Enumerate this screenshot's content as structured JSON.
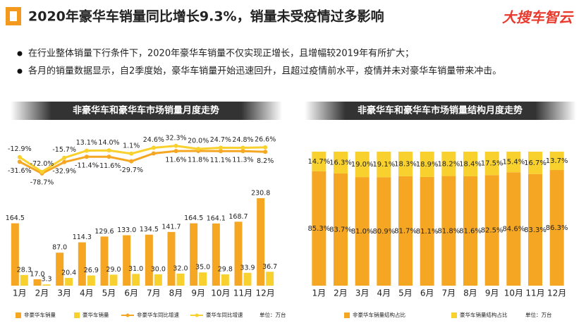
{
  "header": {
    "title": "2020年豪华车销量同比增长9.3%，销量未受疫情过多影响",
    "logo": "大搜车智云"
  },
  "bullets": [
    "在行业整体销量下行条件下，2020年豪华车销量不仅实现正增长，且增幅较2019年有所扩大；",
    "各月的销量数据显示，自2季度始，豪华车销量开始迅速回升，且超过疫情前水平，疫情并未对豪华车销量带来冲击。"
  ],
  "chart_data": [
    {
      "type": "combo",
      "title": "非豪华车和豪华车市场销量月度走势",
      "unit": "单位：万台",
      "categories": [
        "1月",
        "2月",
        "3月",
        "4月",
        "5月",
        "6月",
        "7月",
        "8月",
        "9月",
        "10月",
        "11月",
        "12月"
      ],
      "ylim": [
        0,
        400
      ],
      "y2lim": [
        -530,
        80
      ],
      "series": [
        {
          "name": "非豪华车销量",
          "type": "bar",
          "color": "#f5a623",
          "values": [
            164.5,
            17.0,
            87.0,
            114.3,
            129.6,
            133.0,
            134.5,
            141.7,
            164.5,
            164.1,
            168.7,
            230.8
          ],
          "value_labels": [
            "164.5",
            "17.0",
            "87.0",
            "114.3",
            "129.6",
            "133.0",
            "134.5",
            "141.7",
            "164.5",
            "164.1",
            "168.7",
            "230.8"
          ]
        },
        {
          "name": "豪华车销量",
          "type": "bar",
          "color": "#f8d12e",
          "values": [
            28.3,
            3.3,
            20.4,
            26.9,
            29.0,
            31.0,
            30.0,
            32.0,
            35.0,
            29.8,
            33.9,
            36.7
          ],
          "value_labels": [
            "28.3",
            "3.3",
            "20.4",
            "26.9",
            "29.0",
            "31.0",
            "30.0",
            "32.0",
            "35.0",
            "29.8",
            "33.9",
            "36.7"
          ]
        },
        {
          "name": "非豪华车同比增速",
          "type": "line",
          "axis": "y2",
          "color": "#f5a623",
          "values": [
            -31.6,
            -78.7,
            -32.9,
            -11.4,
            -11.6,
            -29.7,
            2.0,
            11.6,
            11.8,
            11.1,
            11.3,
            8.2
          ],
          "value_labels": [
            "-31.6%",
            "-78.7%",
            "-32.9%",
            "-11.4%",
            "-11.6%",
            "-29.7%",
            null,
            "11.6%",
            "11.8%",
            "11.1%",
            "11.3%",
            "8.2%"
          ]
        },
        {
          "name": "豪华车同比增速",
          "type": "line",
          "axis": "y2",
          "color": "#f8d12e",
          "values": [
            -12.9,
            -72.0,
            -15.7,
            13.1,
            14.0,
            1.1,
            24.6,
            32.3,
            20.0,
            24.7,
            24.8,
            26.6
          ],
          "value_labels": [
            "-12.9%",
            "-72.0%",
            "-15.7%",
            "13.1%",
            "14.0%",
            "1.1%",
            "24.6%",
            "32.3%",
            "20.0%",
            "24.7%",
            "24.8%",
            "26.6%"
          ]
        }
      ]
    },
    {
      "type": "stacked_bar",
      "title": "非豪华车和豪华车市场销量结构月度走势",
      "unit": "单位：万台",
      "categories": [
        "1月",
        "2月",
        "3月",
        "4月",
        "5月",
        "6月",
        "7月",
        "8月",
        "9月",
        "10月",
        "11月",
        "12月"
      ],
      "ylim": [
        0,
        100
      ],
      "series": [
        {
          "name": "非豪华车销量结构占比",
          "color": "#f5a623",
          "values": [
            85.3,
            83.7,
            81.0,
            80.9,
            81.7,
            81.1,
            81.8,
            81.6,
            82.5,
            84.6,
            83.3,
            86.3
          ],
          "value_labels": [
            "85.3%",
            "83.7%",
            "81.0%",
            "80.9%",
            "81.7%",
            "81.1%",
            "81.8%",
            "81.6%",
            "82.5%",
            "84.6%",
            "83.3%",
            "86.3%"
          ]
        },
        {
          "name": "豪华车销量结构占比",
          "color": "#f8d12e",
          "values": [
            14.7,
            16.3,
            19.0,
            19.1,
            18.3,
            18.9,
            18.2,
            18.4,
            17.5,
            15.4,
            16.7,
            13.7
          ],
          "value_labels": [
            "14.7%",
            "16.3%",
            "19.0%",
            "19.1%",
            "18.3%",
            "18.9%",
            "18.2%",
            "18.4%",
            "17.5%",
            "15.4%",
            "16.7%",
            "13.7%"
          ]
        }
      ]
    }
  ]
}
